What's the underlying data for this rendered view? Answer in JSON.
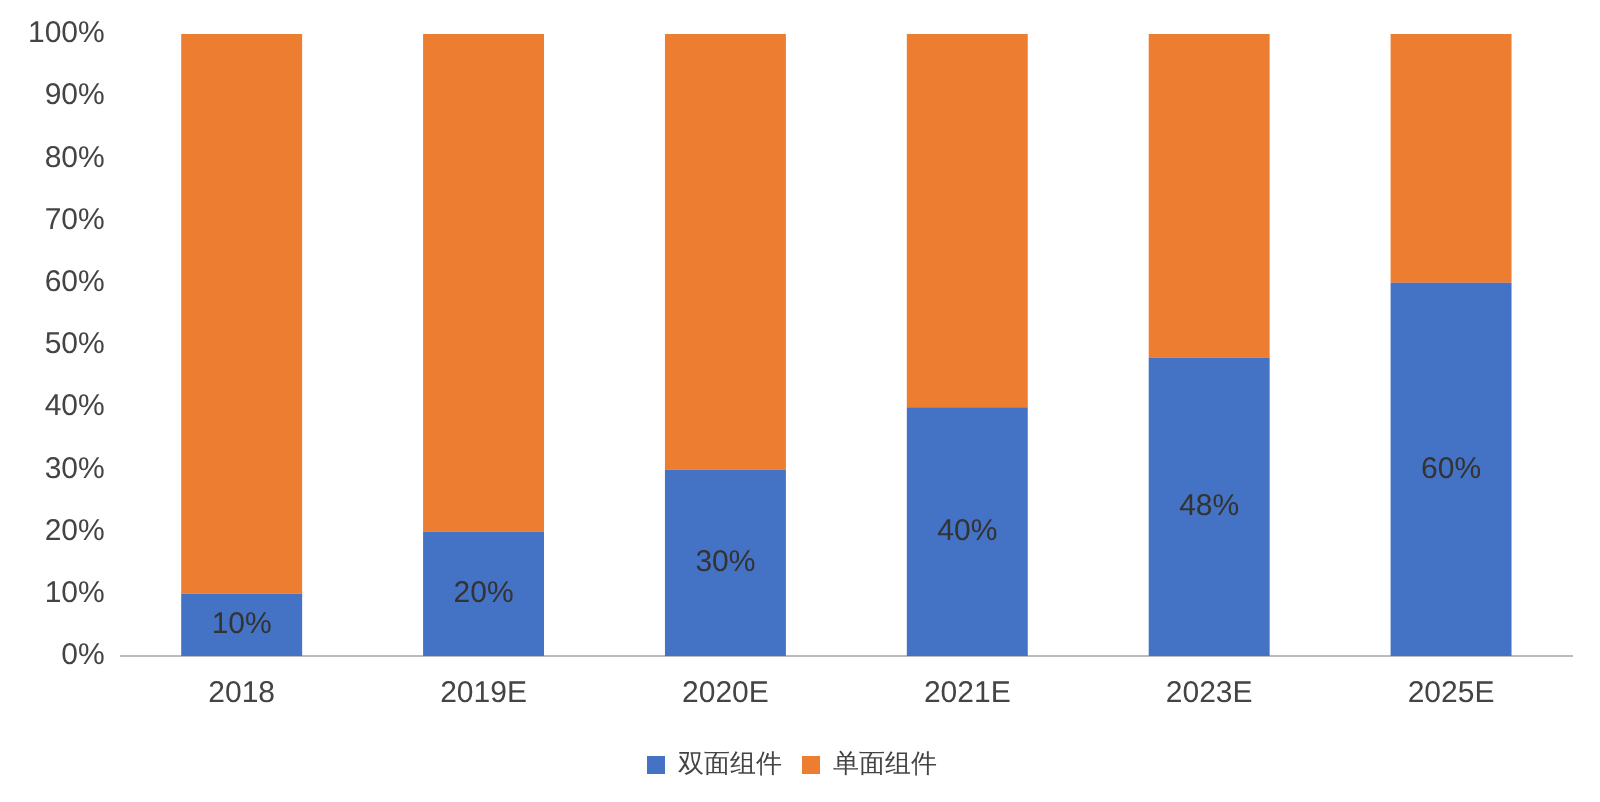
{
  "chart_data": {
    "type": "bar",
    "stacked": true,
    "categories": [
      "2018",
      "2019E",
      "2020E",
      "2021E",
      "2023E",
      "2025E"
    ],
    "series": [
      {
        "name": "双面组件",
        "color": "#4472c4",
        "values": [
          10,
          20,
          30,
          40,
          48,
          60
        ],
        "value_labels": [
          "10%",
          "20%",
          "30%",
          "40%",
          "48%",
          "60%"
        ]
      },
      {
        "name": "单面组件",
        "color": "#ed7d31",
        "values": [
          90,
          80,
          70,
          60,
          52,
          40
        ]
      }
    ],
    "ylim": [
      0,
      100
    ],
    "yticks": [
      {
        "value": 0,
        "label": "0%"
      },
      {
        "value": 10,
        "label": "10%"
      },
      {
        "value": 20,
        "label": "20%"
      },
      {
        "value": 30,
        "label": "30%"
      },
      {
        "value": 40,
        "label": "40%"
      },
      {
        "value": 50,
        "label": "50%"
      },
      {
        "value": 60,
        "label": "60%"
      },
      {
        "value": 70,
        "label": "70%"
      },
      {
        "value": 80,
        "label": "80%"
      },
      {
        "value": 90,
        "label": "90%"
      },
      {
        "value": 100,
        "label": "100%"
      }
    ],
    "grid": false,
    "legend": "bottom"
  }
}
